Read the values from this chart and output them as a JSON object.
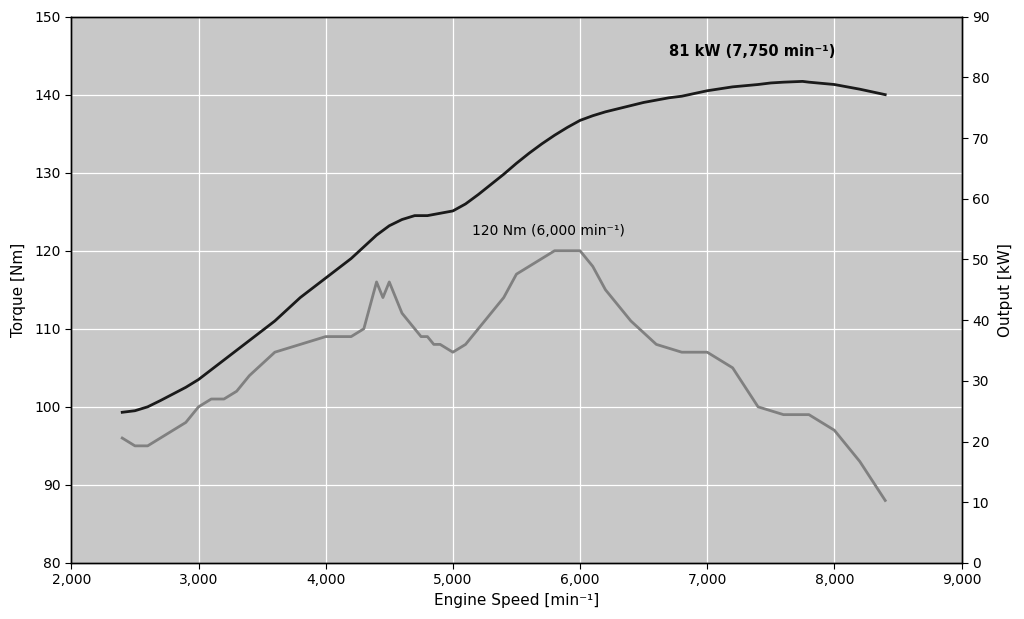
{
  "xlabel": "Engine Speed [min⁻¹]",
  "ylabel_left": "Torque [Nm]",
  "ylabel_right": "Output [kW]",
  "xlim": [
    2000,
    9000
  ],
  "ylim_left": [
    80,
    150
  ],
  "ylim_right": [
    0,
    90
  ],
  "xticks": [
    2000,
    3000,
    4000,
    5000,
    6000,
    7000,
    8000,
    9000
  ],
  "yticks_left": [
    80,
    90,
    100,
    110,
    120,
    130,
    140,
    150
  ],
  "yticks_right": [
    0,
    10,
    20,
    30,
    40,
    50,
    60,
    70,
    80,
    90
  ],
  "background_color": "#c8c8c8",
  "power_color": "#1a1a1a",
  "torque_color": "#808080",
  "torque_label": "120 Nm (6,000 min⁻¹)",
  "power_label": "81 kW (7,750 min⁻¹)",
  "torque_rpm": [
    2400,
    2500,
    2600,
    2700,
    2800,
    2900,
    3000,
    3100,
    3200,
    3300,
    3400,
    3600,
    3800,
    4000,
    4100,
    4200,
    4300,
    4350,
    4400,
    4450,
    4500,
    4550,
    4600,
    4650,
    4700,
    4750,
    4800,
    4850,
    4900,
    5000,
    5100,
    5200,
    5300,
    5400,
    5500,
    5600,
    5700,
    5800,
    5900,
    6000,
    6100,
    6200,
    6400,
    6600,
    6800,
    7000,
    7200,
    7400,
    7600,
    7800,
    8000,
    8200,
    8400
  ],
  "torque_nm": [
    96,
    95,
    95,
    96,
    97,
    98,
    100,
    101,
    101,
    102,
    104,
    107,
    108,
    109,
    109,
    109,
    110,
    113,
    116,
    114,
    116,
    114,
    112,
    111,
    110,
    109,
    109,
    108,
    108,
    107,
    108,
    110,
    112,
    114,
    117,
    118,
    119,
    120,
    120,
    120,
    118,
    115,
    111,
    108,
    107,
    107,
    105,
    100,
    99,
    99,
    97,
    93,
    88
  ],
  "power_rpm": [
    2400,
    2500,
    2600,
    2700,
    2900,
    3000,
    3200,
    3400,
    3600,
    3800,
    4000,
    4200,
    4400,
    4500,
    4600,
    4700,
    4800,
    4900,
    5000,
    5100,
    5200,
    5300,
    5400,
    5500,
    5600,
    5700,
    5800,
    5900,
    6000,
    6100,
    6200,
    6300,
    6500,
    6700,
    6800,
    7000,
    7200,
    7400,
    7500,
    7600,
    7750,
    7800,
    8000,
    8200,
    8400
  ],
  "power_nm_scale": [
    99.3,
    99.5,
    100.0,
    100.8,
    102.5,
    103.5,
    106.0,
    108.5,
    111.0,
    114.0,
    116.5,
    119.0,
    122.0,
    123.2,
    124.0,
    124.5,
    124.5,
    124.8,
    125.1,
    126.0,
    127.2,
    128.5,
    129.8,
    131.2,
    132.5,
    133.7,
    134.8,
    135.8,
    136.7,
    137.3,
    137.8,
    138.2,
    139.0,
    139.6,
    139.8,
    140.5,
    141.0,
    141.3,
    141.5,
    141.6,
    141.7,
    141.6,
    141.3,
    140.7,
    140.0
  ],
  "torque_ann_x": 5150,
  "torque_ann_y": 122,
  "power_ann_x": 6700,
  "power_ann_y": 145
}
